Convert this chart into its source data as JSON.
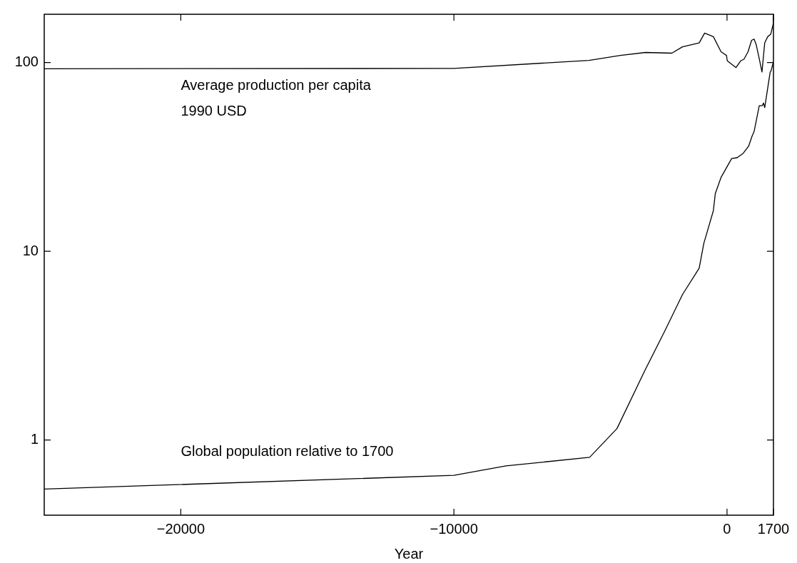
{
  "chart_data": {
    "type": "line",
    "xlabel": "Year",
    "log": "y",
    "grid": false,
    "legend": false,
    "marker": "none",
    "line_style": "solid",
    "xlim": [
      -25000,
      1700
    ],
    "xticks": [
      -20000,
      -10000,
      0,
      1700
    ],
    "ylim": [
      0.4,
      180
    ],
    "yticks": [
      1,
      10,
      100
    ],
    "annotations": [
      "1990 USD"
    ],
    "series": [
      {
        "name": "Average production per capita",
        "color": "#000000",
        "x": [
          -25000,
          -10000,
          -5050,
          -3900,
          -2980,
          -2020,
          -1630,
          -1020,
          -820,
          -500,
          -220,
          -20,
          10,
          330,
          500,
          620,
          770,
          900,
          990,
          1070,
          1190,
          1280,
          1380,
          1490,
          1600,
          1690,
          1700
        ],
        "values": [
          92.6,
          93,
          102.6,
          109,
          113,
          112,
          121,
          127,
          143,
          137,
          114,
          109,
          102,
          94,
          102,
          104,
          114,
          131,
          133,
          124,
          103,
          89,
          127,
          137,
          141,
          160,
          175
        ]
      },
      {
        "name": "Global population relative to 1700",
        "color": "#000000",
        "x": [
          -25000,
          -10000,
          -8090,
          -5030,
          -4030,
          -2980,
          -2290,
          -1630,
          -1020,
          -850,
          -500,
          -430,
          -220,
          170,
          370,
          590,
          790,
          920,
          990,
          1180,
          1290,
          1335,
          1380,
          1580,
          1610,
          1690,
          1700
        ],
        "values": [
          0.55,
          0.65,
          0.73,
          0.81,
          1.15,
          2.38,
          3.75,
          5.9,
          8.13,
          11,
          16.4,
          20.2,
          24.6,
          31,
          31.3,
          33,
          36,
          40.8,
          43,
          59,
          59,
          61,
          57.6,
          89,
          90,
          100,
          100
        ]
      }
    ]
  }
}
